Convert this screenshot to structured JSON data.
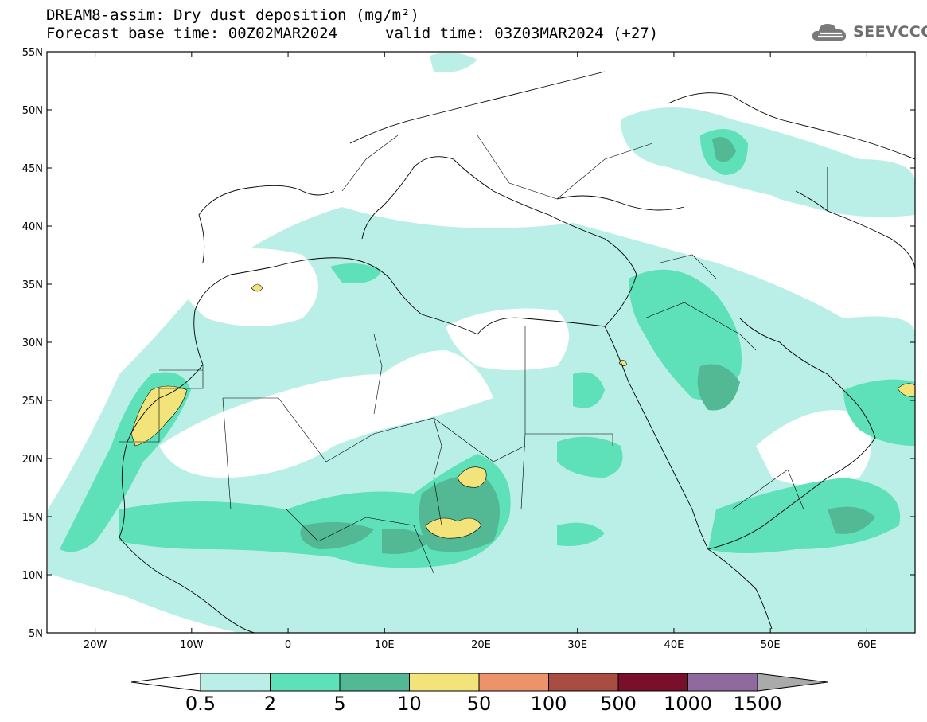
{
  "header": {
    "title": "DREAM8-assim: Dry dust deposition (mg/m²)",
    "base_time": "Forecast base time: 00Z02MAR2024",
    "valid_time": "valid time: 03Z03MAR2024 (+27)"
  },
  "logo": {
    "text": "SEEVCCC",
    "icon": "cloud-icon"
  },
  "map": {
    "lon_range": [
      -25,
      65
    ],
    "lat_range": [
      5,
      55
    ],
    "lon_ticks": [
      {
        "value": -20,
        "label": "20W"
      },
      {
        "value": -10,
        "label": "10W"
      },
      {
        "value": 0,
        "label": "0"
      },
      {
        "value": 10,
        "label": "10E"
      },
      {
        "value": 20,
        "label": "20E"
      },
      {
        "value": 30,
        "label": "30E"
      },
      {
        "value": 40,
        "label": "40E"
      },
      {
        "value": 50,
        "label": "50E"
      },
      {
        "value": 60,
        "label": "60E"
      }
    ],
    "lat_ticks": [
      {
        "value": 55,
        "label": "55N"
      },
      {
        "value": 50,
        "label": "50N"
      },
      {
        "value": 45,
        "label": "45N"
      },
      {
        "value": 40,
        "label": "40N"
      },
      {
        "value": 35,
        "label": "35N"
      },
      {
        "value": 30,
        "label": "30N"
      },
      {
        "value": 25,
        "label": "25N"
      },
      {
        "value": 20,
        "label": "20N"
      },
      {
        "value": 15,
        "label": "15N"
      },
      {
        "value": 10,
        "label": "10N"
      },
      {
        "value": 5,
        "label": "5N"
      }
    ]
  },
  "colorbar": {
    "bins": [
      {
        "color": "#b9efe6"
      },
      {
        "color": "#5ee0b8"
      },
      {
        "color": "#52b994"
      },
      {
        "color": "#f2e47a"
      },
      {
        "color": "#ec936c"
      },
      {
        "color": "#a94c42"
      },
      {
        "color": "#7a0f2c"
      },
      {
        "color": "#8f6a9e"
      }
    ],
    "under_color": "#ffffff",
    "over_color": "#aaaaaa",
    "labels": [
      "0.5",
      "2",
      "5",
      "10",
      "50",
      "100",
      "500",
      "1000",
      "1500"
    ]
  }
}
